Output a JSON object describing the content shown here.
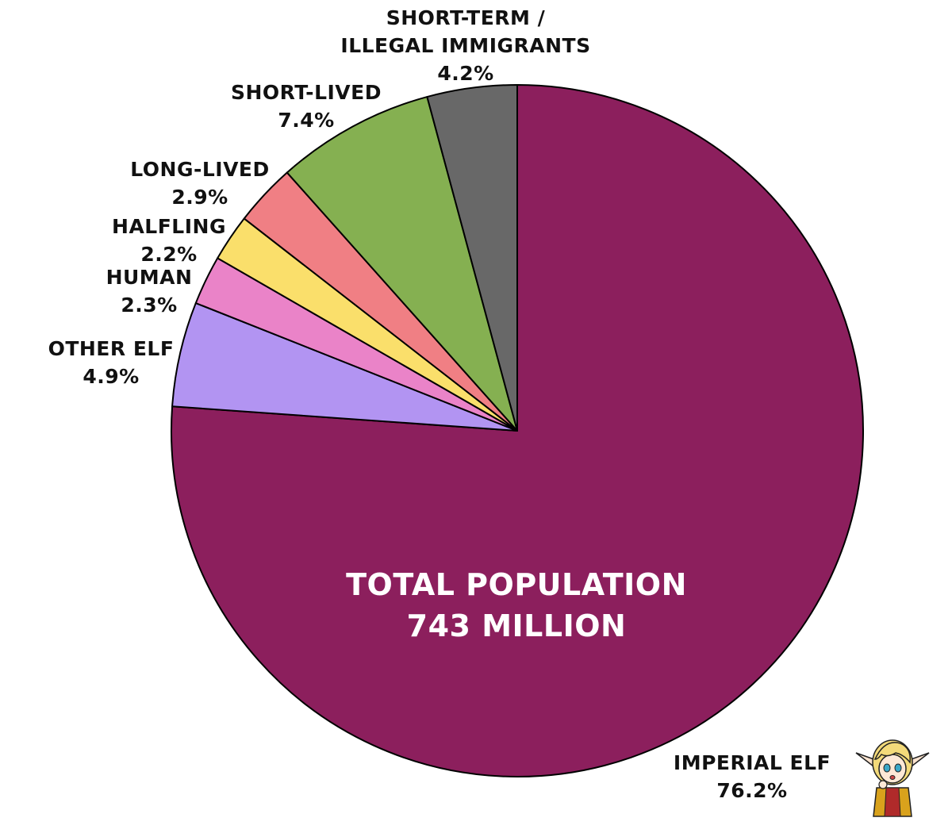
{
  "chart_data": {
    "type": "pie",
    "center_text": [
      "TOTAL POPULATION",
      "743 MILLION"
    ],
    "start": "12 o'clock",
    "direction": "clockwise",
    "slices": [
      {
        "name": "IMPERIAL ELF",
        "label_lines": [
          "IMPERIAL ELF"
        ],
        "value": 76.2,
        "value_label": "76.2%",
        "color": "#8c1f5d"
      },
      {
        "name": "OTHER ELF",
        "label_lines": [
          "OTHER ELF"
        ],
        "value": 4.9,
        "value_label": "4.9%",
        "color": "#b294f2"
      },
      {
        "name": "HUMAN",
        "label_lines": [
          "HUMAN"
        ],
        "value": 2.3,
        "value_label": "2.3%",
        "color": "#ea83c8"
      },
      {
        "name": "HALFLING",
        "label_lines": [
          "HALFLING"
        ],
        "value": 2.2,
        "value_label": "2.2%",
        "color": "#fadf6b"
      },
      {
        "name": "LONG-LIVED",
        "label_lines": [
          "LONG-LIVED"
        ],
        "value": 2.9,
        "value_label": "2.9%",
        "color": "#f07f84"
      },
      {
        "name": "SHORT-LIVED",
        "label_lines": [
          "SHORT-LIVED"
        ],
        "value": 7.4,
        "value_label": "7.4%",
        "color": "#85b051"
      },
      {
        "name": "SHORT-TERM / ILLEGAL IMMIGRANTS",
        "label_lines": [
          "SHORT-TERM /",
          "ILLEGAL IMMIGRANTS"
        ],
        "value": 4.2,
        "value_label": "4.2%",
        "color": "#686868"
      }
    ],
    "outline_color": "#000000",
    "decoration": "elf-mascot"
  }
}
